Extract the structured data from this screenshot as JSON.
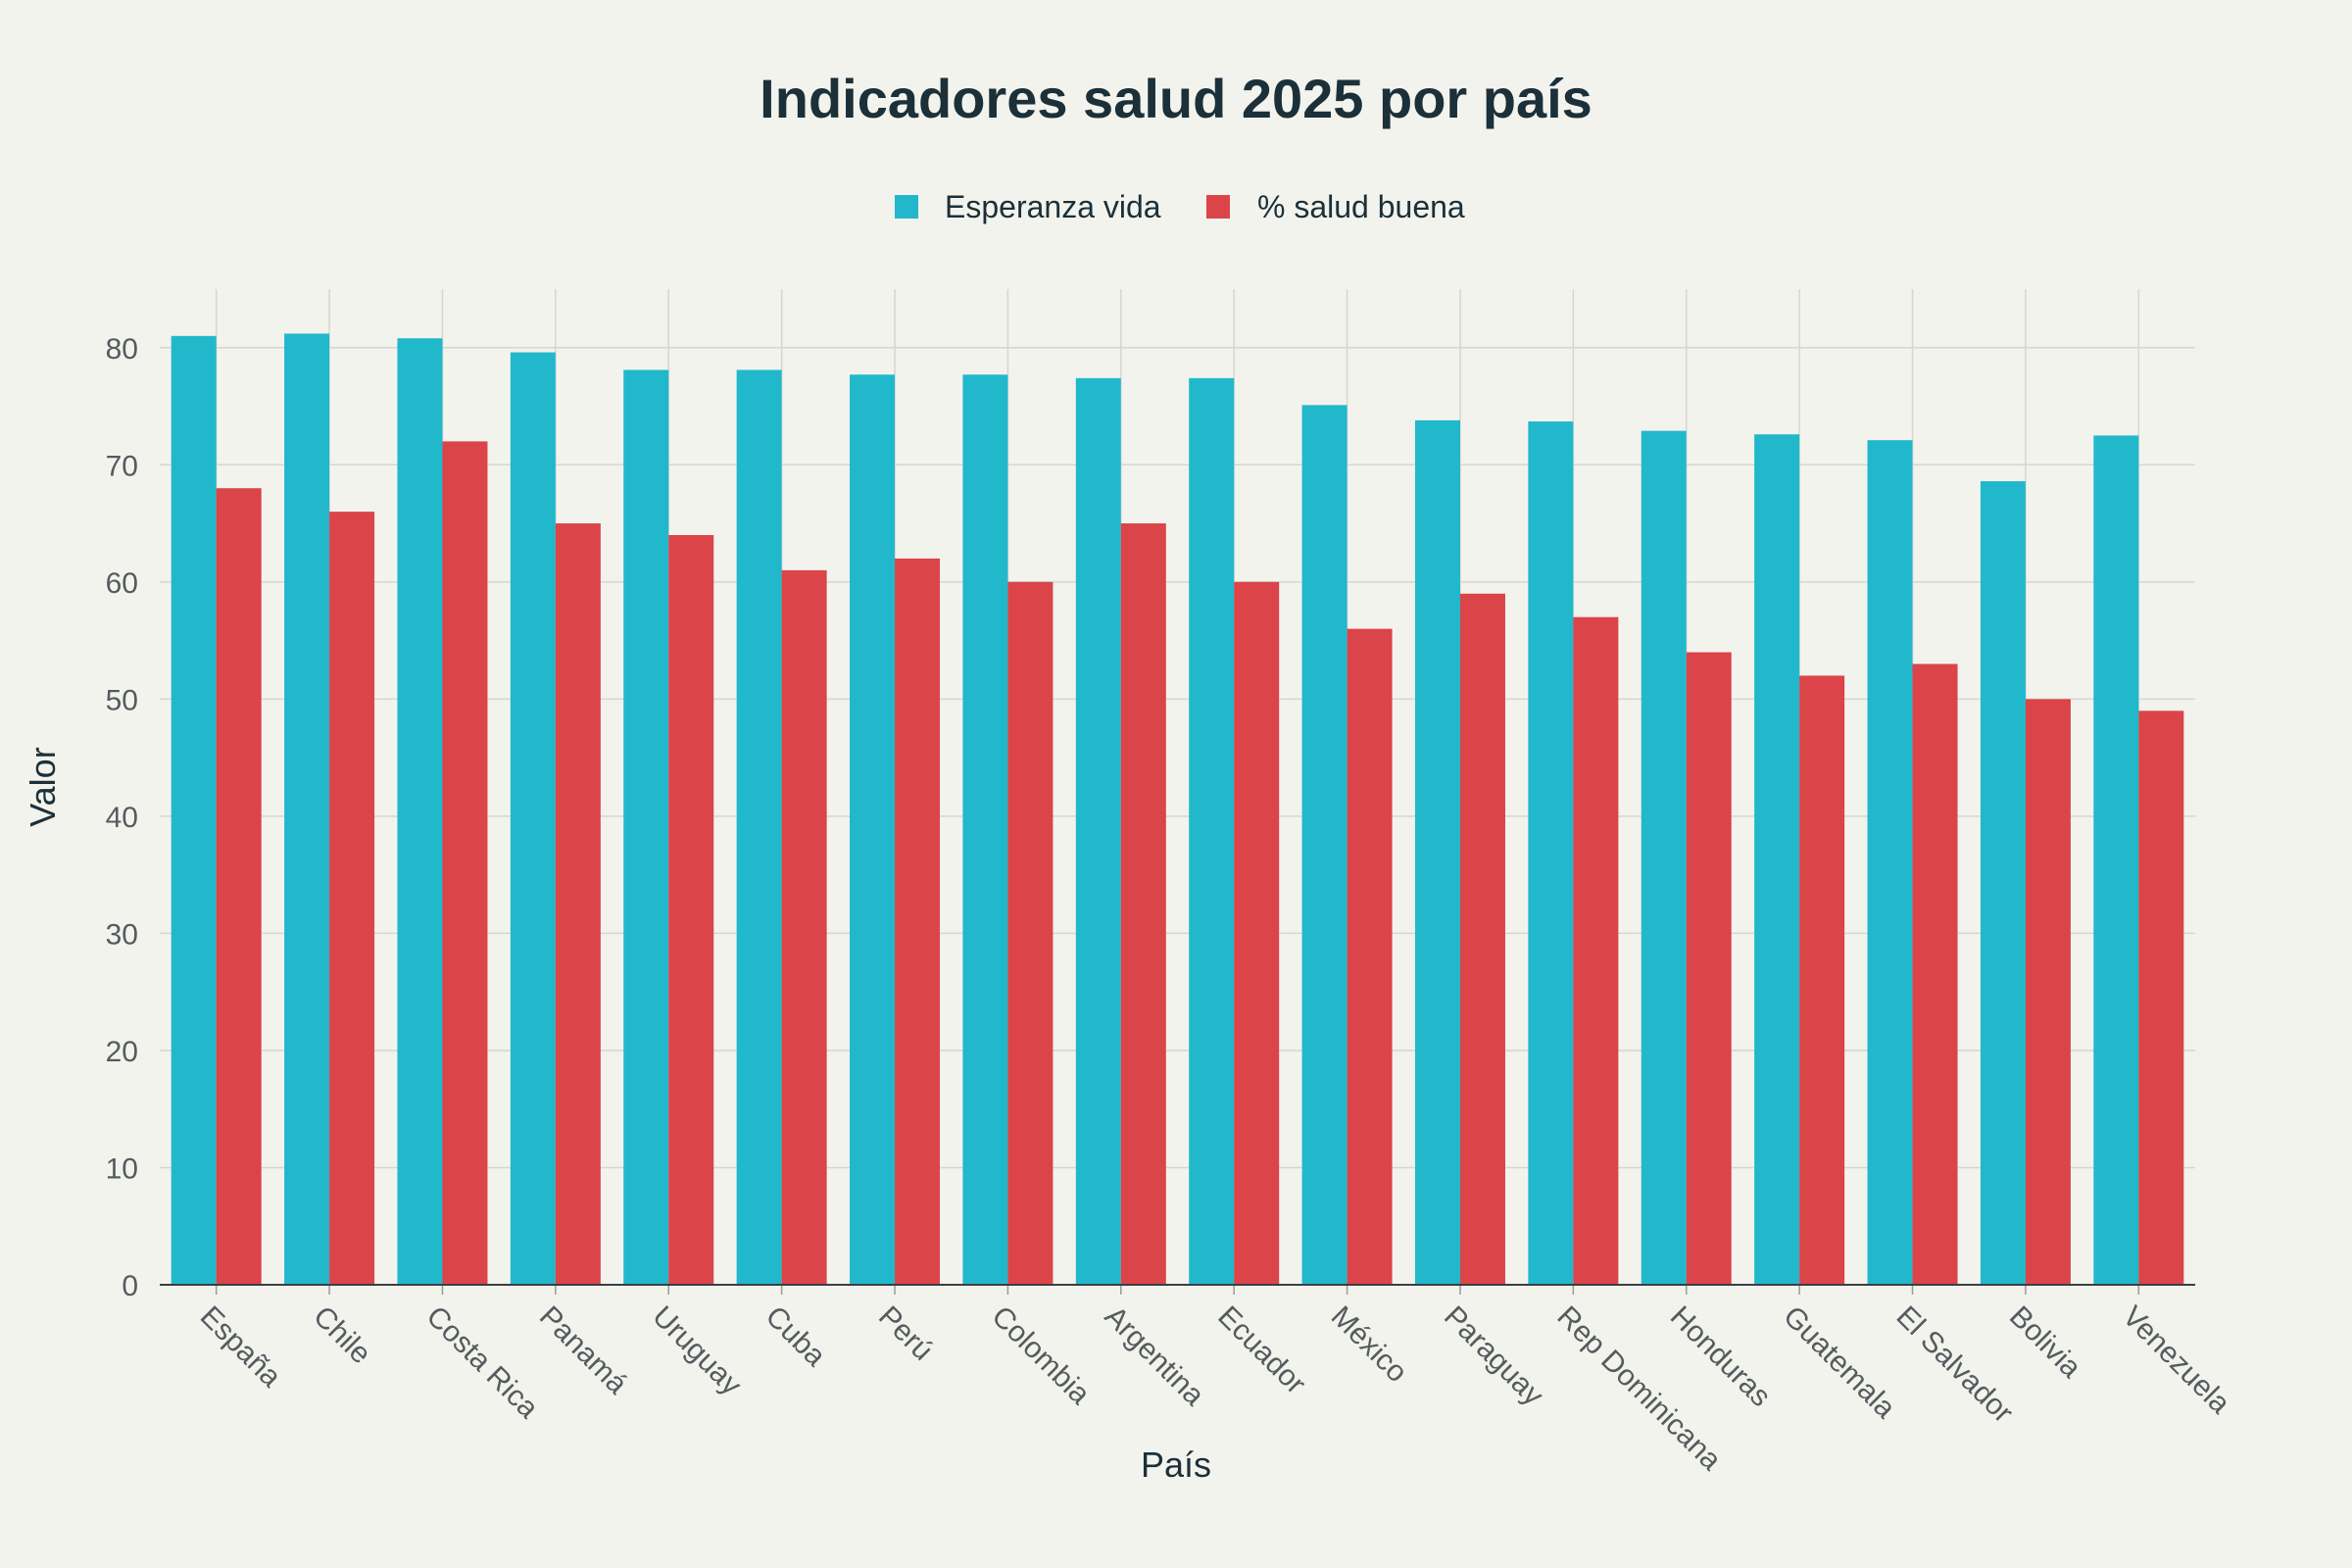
{
  "chart_data": {
    "type": "bar",
    "title": "Indicadores salud 2025 por país",
    "xlabel": "País",
    "ylabel": "Valor",
    "ylim": [
      0,
      85
    ],
    "yticks": [
      0,
      10,
      20,
      30,
      40,
      50,
      60,
      70,
      80
    ],
    "grid": true,
    "legend_position": "top-center",
    "categories": [
      "España",
      "Chile",
      "Costa Rica",
      "Panamá",
      "Uruguay",
      "Cuba",
      "Perú",
      "Colombia",
      "Argentina",
      "Ecuador",
      "México",
      "Paraguay",
      "Rep Dominicana",
      "Honduras",
      "Guatemala",
      "El Salvador",
      "Bolivia",
      "Venezuela"
    ],
    "series": [
      {
        "name": "Esperanza vida",
        "color": "#21b8cc",
        "values": [
          81.0,
          81.2,
          80.8,
          79.6,
          78.1,
          78.1,
          77.7,
          77.7,
          77.4,
          77.4,
          75.1,
          73.8,
          73.7,
          72.9,
          72.6,
          72.1,
          68.6,
          72.5
        ]
      },
      {
        "name": "% salud buena",
        "color": "#db4448",
        "values": [
          68,
          66,
          72,
          65,
          64,
          61,
          62,
          60,
          65,
          60,
          56,
          59,
          57,
          54,
          52,
          53,
          50,
          49
        ]
      }
    ]
  }
}
